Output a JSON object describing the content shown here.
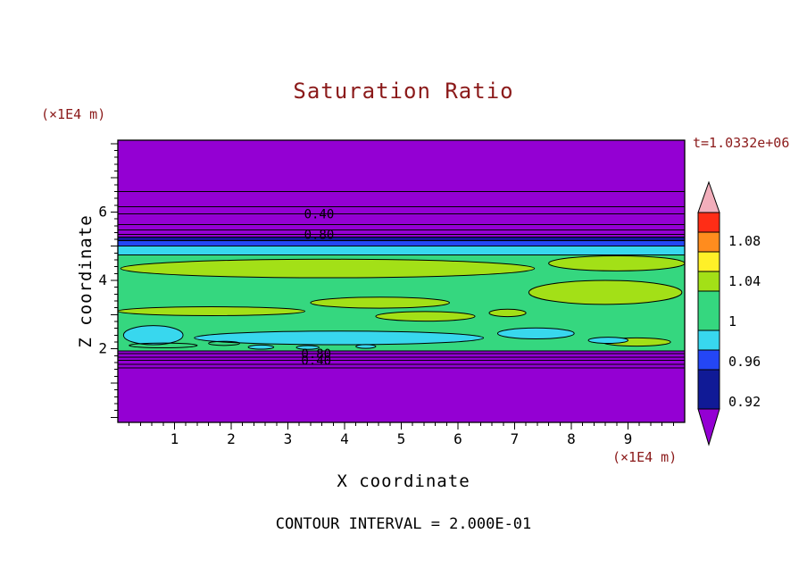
{
  "chart_data": {
    "type": "heatmap",
    "title": "Saturation Ratio",
    "annotation": "t=1.0332e+06",
    "xlabel": "X coordinate",
    "ylabel": "Z coordinate",
    "x_unit": "(×1E4 m)",
    "y_unit": "(×1E4 m)",
    "footnote": "CONTOUR INTERVAL = 2.000E-01",
    "contour_interval": 0.2,
    "xlim": [
      0,
      10
    ],
    "ylim": [
      -0.15,
      8.1
    ],
    "x_ticks": [
      1,
      2,
      3,
      4,
      5,
      6,
      7,
      8,
      9
    ],
    "y_tick_labels": [
      6,
      4,
      2
    ],
    "minor_tick_step": 0.2,
    "colors": {
      "purple": "#9400D3",
      "navy": "#101A96",
      "blue": "#2446F5",
      "cyan": "#38D7EE",
      "green": "#35D77F",
      "chartreuse": "#A3E017",
      "yellow": "#FFF028",
      "orange": "#FF8C1E",
      "red": "#FF2D16",
      "pink": "#F2AEBB",
      "annotation_text": "#8B1A1A",
      "axis_text": "#000000",
      "line": "#000000"
    },
    "colorbar": {
      "labels": [
        "1.08",
        "1.04",
        "1",
        "0.96",
        "0.92"
      ],
      "segments": [
        "red",
        "orange",
        "yellow",
        "chartreuse",
        "green",
        "cyan",
        "blue",
        "navy"
      ],
      "top_tip": "pink",
      "bottom_tip": "purple"
    },
    "field": {
      "background": "purple",
      "bands": [
        {
          "z0": 1.94,
          "z1": 4.74,
          "color": "green"
        },
        {
          "z0": 4.74,
          "z1": 5.0,
          "color": "cyan"
        },
        {
          "z0": 5.0,
          "z1": 5.16,
          "color": "blue"
        },
        {
          "z0": 5.16,
          "z1": 5.27,
          "color": "navy"
        }
      ],
      "hlines": [
        {
          "z": 6.6
        },
        {
          "z": 6.15
        },
        {
          "z": 5.94,
          "label": "0.40",
          "label_x": 3.55
        },
        {
          "z": 5.63
        },
        {
          "z": 5.47
        },
        {
          "z": 5.34,
          "label": "0.80",
          "label_x": 3.55
        },
        {
          "z": 5.27
        },
        {
          "z": 5.16
        },
        {
          "z": 5.0
        },
        {
          "z": 4.74
        },
        {
          "z": 1.94
        },
        {
          "z": 1.86,
          "label": "0.80",
          "label_x": 3.5
        },
        {
          "z": 1.76
        },
        {
          "z": 1.66,
          "label": "0.40",
          "label_x": 3.5
        },
        {
          "z": 1.55
        },
        {
          "z": 1.44
        }
      ],
      "blobs": [
        {
          "x0": 0.05,
          "x1": 7.35,
          "zc": 4.35,
          "rz": 0.27,
          "color": "chartreuse"
        },
        {
          "x0": 7.6,
          "x1": 10.0,
          "zc": 4.5,
          "rz": 0.22,
          "color": "chartreuse"
        },
        {
          "x0": 0.0,
          "x1": 3.3,
          "zc": 3.1,
          "rz": 0.13,
          "color": "chartreuse"
        },
        {
          "x0": 3.4,
          "x1": 5.85,
          "zc": 3.35,
          "rz": 0.16,
          "color": "chartreuse"
        },
        {
          "x0": 7.25,
          "x1": 9.95,
          "zc": 3.65,
          "rz": 0.35,
          "color": "chartreuse"
        },
        {
          "x0": 4.55,
          "x1": 6.3,
          "zc": 2.95,
          "rz": 0.14,
          "color": "chartreuse"
        },
        {
          "x0": 6.55,
          "x1": 7.2,
          "zc": 3.05,
          "rz": 0.11,
          "color": "chartreuse"
        },
        {
          "x0": 8.55,
          "x1": 9.75,
          "zc": 2.2,
          "rz": 0.12,
          "color": "chartreuse"
        },
        {
          "x0": 0.1,
          "x1": 1.15,
          "zc": 2.4,
          "rz": 0.28,
          "color": "cyan"
        },
        {
          "x0": 1.35,
          "x1": 6.45,
          "zc": 2.32,
          "rz": 0.2,
          "color": "cyan"
        },
        {
          "x0": 6.7,
          "x1": 8.05,
          "zc": 2.45,
          "rz": 0.16,
          "color": "cyan"
        },
        {
          "x0": 8.3,
          "x1": 9.0,
          "zc": 2.25,
          "rz": 0.09,
          "color": "cyan"
        },
        {
          "x0": 2.3,
          "x1": 2.75,
          "zc": 2.05,
          "rz": 0.06,
          "color": "cyan"
        },
        {
          "x0": 3.15,
          "x1": 3.55,
          "zc": 2.04,
          "rz": 0.055,
          "color": "cyan"
        },
        {
          "x0": 4.2,
          "x1": 4.55,
          "zc": 2.07,
          "rz": 0.055,
          "color": "cyan"
        },
        {
          "x0": 0.2,
          "x1": 1.4,
          "zc": 2.1,
          "rz": 0.07,
          "color": "outline"
        },
        {
          "x0": 1.6,
          "x1": 2.15,
          "zc": 2.16,
          "rz": 0.06,
          "color": "outline"
        }
      ]
    }
  }
}
